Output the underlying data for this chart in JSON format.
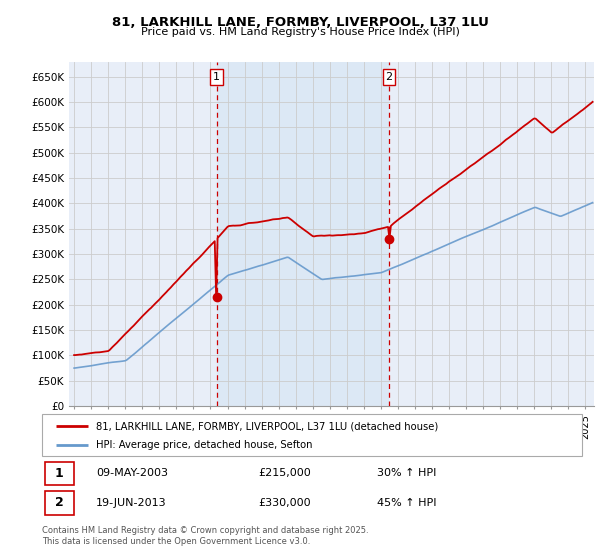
{
  "title1": "81, LARKHILL LANE, FORMBY, LIVERPOOL, L37 1LU",
  "title2": "Price paid vs. HM Land Registry's House Price Index (HPI)",
  "ylim": [
    0,
    680000
  ],
  "yticks": [
    0,
    50000,
    100000,
    150000,
    200000,
    250000,
    300000,
    350000,
    400000,
    450000,
    500000,
    550000,
    600000,
    650000
  ],
  "ytick_labels": [
    "£0",
    "£50K",
    "£100K",
    "£150K",
    "£200K",
    "£250K",
    "£300K",
    "£350K",
    "£400K",
    "£450K",
    "£500K",
    "£550K",
    "£600K",
    "£650K"
  ],
  "xlim_start": 1994.7,
  "xlim_end": 2025.5,
  "purchase1_x": 2003.36,
  "purchase1_y": 215000,
  "purchase2_x": 2013.47,
  "purchase2_y": 330000,
  "marker_color": "#cc0000",
  "line1_color": "#cc0000",
  "line2_color": "#6699cc",
  "vline_color": "#cc0000",
  "grid_color": "#cccccc",
  "bg_color": "#e8eef8",
  "shade_color": "#dce8f5",
  "legend_label1": "81, LARKHILL LANE, FORMBY, LIVERPOOL, L37 1LU (detached house)",
  "legend_label2": "HPI: Average price, detached house, Sefton",
  "table_row1": [
    "1",
    "09-MAY-2003",
    "£215,000",
    "30% ↑ HPI"
  ],
  "table_row2": [
    "2",
    "19-JUN-2013",
    "£330,000",
    "45% ↑ HPI"
  ],
  "footnote": "Contains HM Land Registry data © Crown copyright and database right 2025.\nThis data is licensed under the Open Government Licence v3.0."
}
